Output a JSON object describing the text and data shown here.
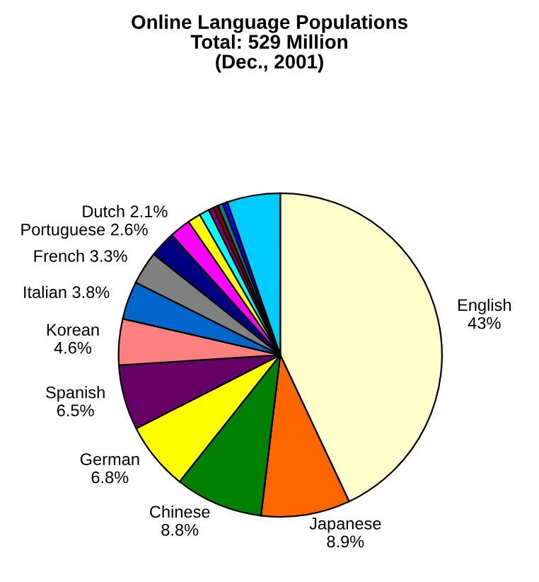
{
  "chart_data": {
    "type": "pie",
    "title": "Online Language Populations\nTotal: 529 Million\n(Dec., 2001)",
    "categories": [
      "English",
      "Japanese",
      "Chinese",
      "German",
      "Spanish",
      "Korean",
      "Italian",
      "French",
      "Portuguese",
      "Dutch",
      null,
      null,
      null,
      null,
      null,
      null,
      null
    ],
    "values": [
      43,
      8.9,
      8.8,
      6.8,
      6.5,
      4.6,
      3.8,
      3.3,
      2.6,
      2.1,
      1.3,
      1.0,
      0.5,
      0.5,
      0.5,
      0.5,
      5.3
    ],
    "value_labels": [
      "43%",
      "8.9%",
      "8.8%",
      "6.8%",
      "6.5%",
      "4.6%",
      "3.8%",
      "3.3%",
      "2.6%",
      "2.1%",
      null,
      null,
      null,
      null,
      null,
      null,
      null
    ],
    "colors": [
      "#ffffcc",
      "#ff6600",
      "#008000",
      "#ffff00",
      "#660066",
      "#ff8080",
      "#0066cc",
      "#808080",
      "#000080",
      "#ff00ff",
      "#ffff00",
      "#00ffff",
      "#800080",
      "#800000",
      "#008080",
      "#0000ff",
      "#00ccff"
    ]
  }
}
